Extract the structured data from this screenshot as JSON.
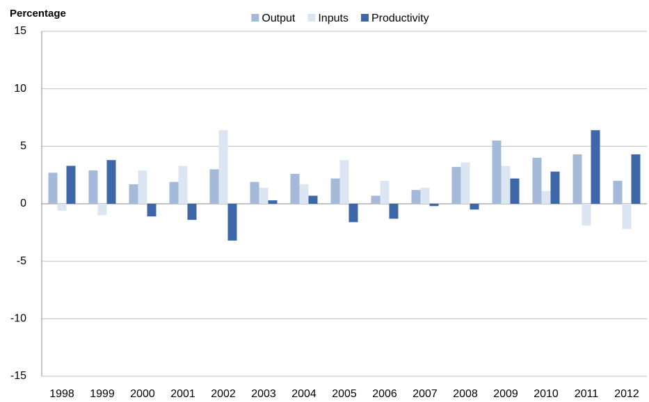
{
  "chart_data": {
    "type": "bar",
    "y_label": "Percentage",
    "categories": [
      "1998",
      "1999",
      "2000",
      "2001",
      "2002",
      "2003",
      "2004",
      "2005",
      "2006",
      "2007",
      "2008",
      "2009",
      "2010",
      "2011",
      "2012"
    ],
    "series": [
      {
        "name": "Output",
        "color": "#a5b9d9",
        "values": [
          2.7,
          2.9,
          1.7,
          1.9,
          3.0,
          1.9,
          2.6,
          2.2,
          0.7,
          1.2,
          3.2,
          5.5,
          4.0,
          4.3,
          2.0
        ]
      },
      {
        "name": "Inputs",
        "color": "#dce6f2",
        "values": [
          -0.6,
          -1.0,
          2.9,
          3.3,
          6.4,
          1.4,
          1.7,
          3.8,
          2.0,
          1.4,
          3.6,
          3.3,
          1.1,
          -1.9,
          -2.2
        ]
      },
      {
        "name": "Productivity",
        "color": "#3d67a6",
        "values": [
          3.3,
          3.8,
          -1.1,
          -1.4,
          -3.2,
          0.3,
          0.7,
          -1.6,
          -1.3,
          -0.2,
          -0.5,
          2.2,
          2.8,
          6.4,
          4.3
        ]
      }
    ],
    "ylim": [
      -15,
      15
    ],
    "yticks": [
      -15,
      -10,
      -5,
      0,
      5,
      10,
      15
    ],
    "grid": true,
    "legend": "top"
  }
}
